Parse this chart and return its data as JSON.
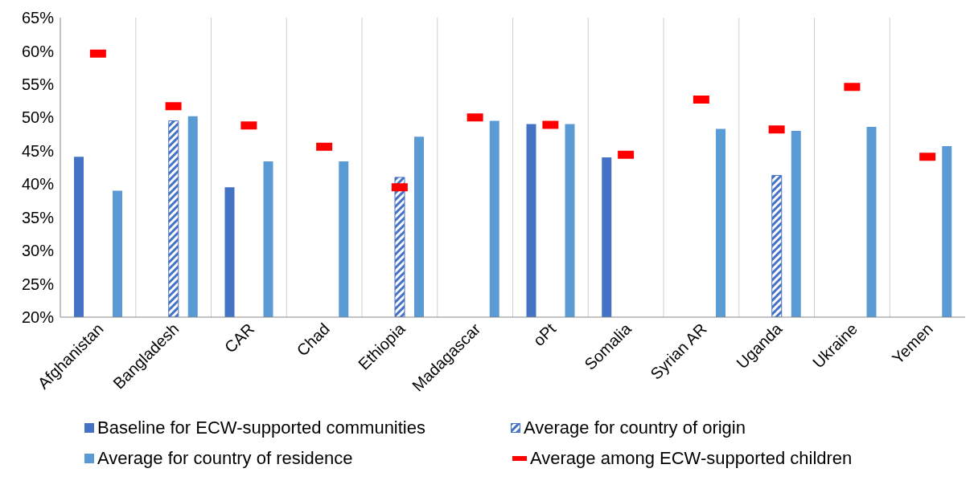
{
  "chart_data": {
    "type": "bar",
    "categories": [
      "Afghanistan",
      "Bangladesh",
      "CAR",
      "Chad",
      "Ethiopia",
      "Madagascar",
      "oPt",
      "Somalia",
      "Syrian AR",
      "Uganda",
      "Ukraine",
      "Yemen"
    ],
    "series": [
      {
        "name": "Baseline for ECW-supported communities",
        "color": "#4472c4",
        "values": [
          44.1,
          null,
          39.5,
          null,
          null,
          null,
          49,
          44,
          null,
          null,
          null,
          null
        ]
      },
      {
        "name": "Average for country of origin",
        "color": "#4472c4",
        "values": [
          null,
          49.5,
          null,
          null,
          41,
          null,
          null,
          null,
          null,
          41.3,
          null,
          null
        ]
      },
      {
        "name": "Average for country of residence",
        "color": "#5b9bd5",
        "values": [
          39,
          50.2,
          43.4,
          43.4,
          47.1,
          49.5,
          49,
          null,
          48.3,
          48,
          48.6,
          45.7
        ]
      },
      {
        "name": "Average among ECW-supported children",
        "type": "scatter",
        "color": "#ff0000",
        "values": [
          59.6,
          51.7,
          48.8,
          45.6,
          39.5,
          50,
          48.9,
          44.4,
          52.7,
          48.2,
          54.6,
          44.1
        ]
      }
    ],
    "ylim": [
      20,
      65
    ],
    "yticks": [
      {
        "value": 20,
        "label": "20%"
      },
      {
        "value": 25,
        "label": "25%"
      },
      {
        "value": 30,
        "label": "30%"
      },
      {
        "value": 35,
        "label": "35%"
      },
      {
        "value": 40,
        "label": "40%"
      },
      {
        "value": 45,
        "label": "45%"
      },
      {
        "value": 50,
        "label": "50%"
      },
      {
        "value": 55,
        "label": "55%"
      },
      {
        "value": 60,
        "label": "60%"
      },
      {
        "value": 65,
        "label": "65%"
      }
    ],
    "grid": "x",
    "legend": "bottom"
  }
}
